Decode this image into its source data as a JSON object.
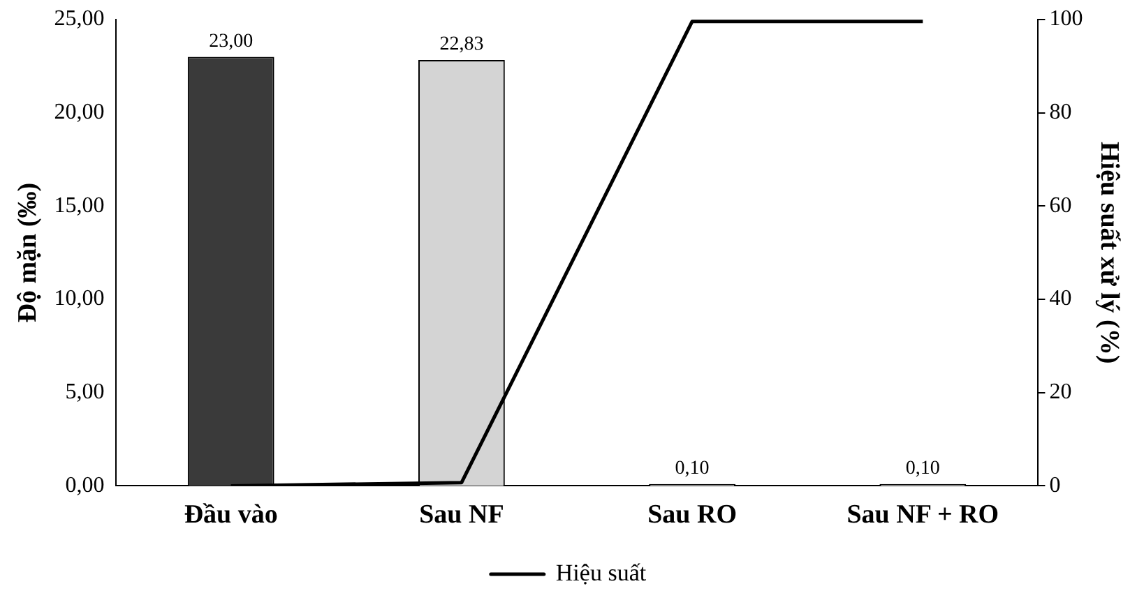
{
  "chart_data": {
    "type": "bar",
    "ylabel": "Độ mặn (‰)",
    "y2label": "Hiệu suất xử lý (%)",
    "categories": [
      "Đầu vào",
      "Sau NF",
      "Sau RO",
      "Sau NF + RO"
    ],
    "series": [
      {
        "colors": [
          "#3a3a3a",
          "#d4d4d4",
          "#bcbcbc",
          "#bcbcbc"
        ],
        "values": [
          23.0,
          22.83,
          0.1,
          0.1
        ],
        "value_labels": [
          "23,00",
          "22,83",
          "0,10",
          "0,10"
        ]
      },
      {
        "type": "line",
        "axis": "y2",
        "name": "Hiệu suất",
        "color": "#000000",
        "values": [
          0,
          0.7,
          99.6,
          99.6
        ]
      }
    ],
    "ylim": [
      0,
      25
    ],
    "yticks": [
      {
        "value": 0,
        "label": "0,00"
      },
      {
        "value": 5,
        "label": "5,00"
      },
      {
        "value": 10,
        "label": "10,00"
      },
      {
        "value": 15,
        "label": "15,00"
      },
      {
        "value": 20,
        "label": "20,00"
      },
      {
        "value": 25,
        "label": "25,00"
      }
    ],
    "y2lim": [
      0,
      100
    ],
    "y2ticks": [
      0,
      20,
      40,
      60,
      80,
      100
    ],
    "grid": false,
    "legend": "bottom",
    "marker": "none"
  }
}
